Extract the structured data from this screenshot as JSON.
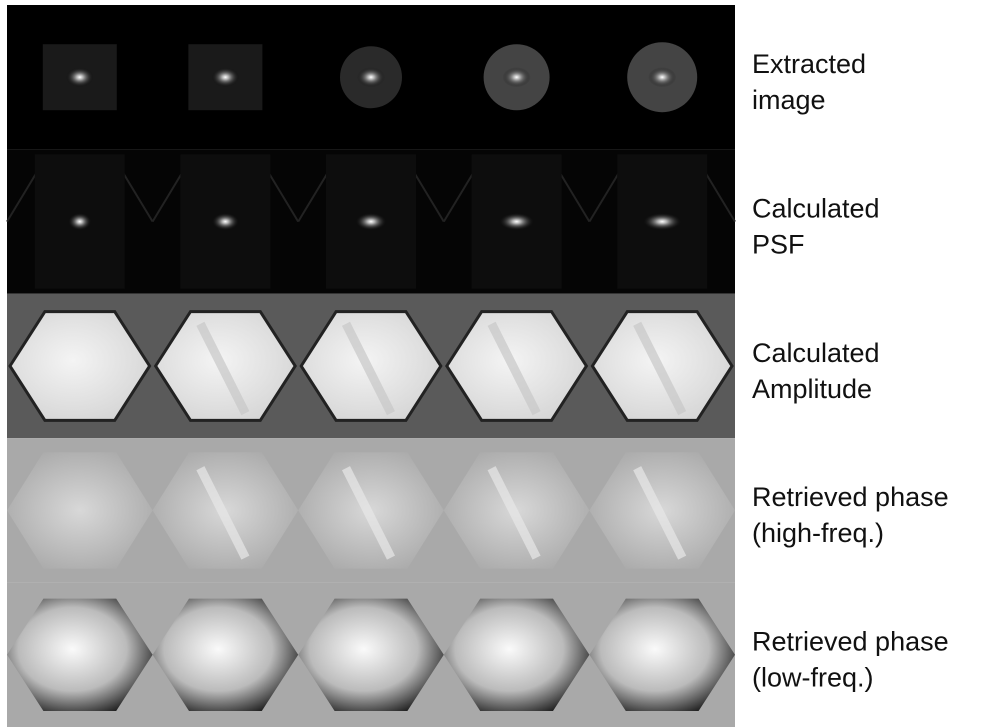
{
  "rows": [
    {
      "label_lines": [
        "Extracted",
        "image"
      ]
    },
    {
      "label_lines": [
        "Calculated",
        "PSF"
      ]
    },
    {
      "label_lines": [
        "Calculated",
        "Amplitude"
      ]
    },
    {
      "label_lines": [
        "Retrieved phase",
        "(high-freq.)"
      ]
    },
    {
      "label_lines": [
        "Retrieved phase",
        "(low-freq.)"
      ]
    }
  ]
}
